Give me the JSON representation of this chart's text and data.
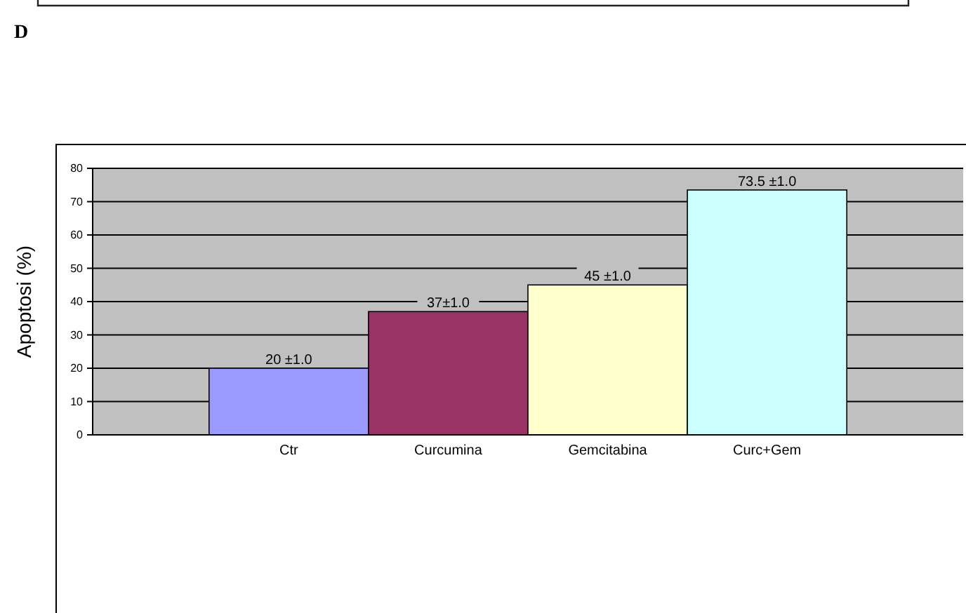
{
  "chart_data": {
    "type": "bar",
    "ylabel": "Apoptosi (%)",
    "annotations": [
      "D"
    ],
    "categories": [
      "Ctr",
      "Curcumina",
      "Gemcitabina",
      "Curc+Gem"
    ],
    "values": [
      20,
      37,
      45,
      73.5
    ],
    "colors": [
      "#9999ff",
      "#993366",
      "#ffffcc",
      "#ccffff"
    ],
    "value_labels": [
      "20 ±1.0",
      "37±1.0",
      "45 ±1.0",
      "73.5 ±1.0"
    ],
    "ylim": [
      0,
      80
    ],
    "yticks": [
      0,
      10,
      20,
      30,
      40,
      50,
      60,
      70,
      80
    ],
    "grid": "y"
  }
}
